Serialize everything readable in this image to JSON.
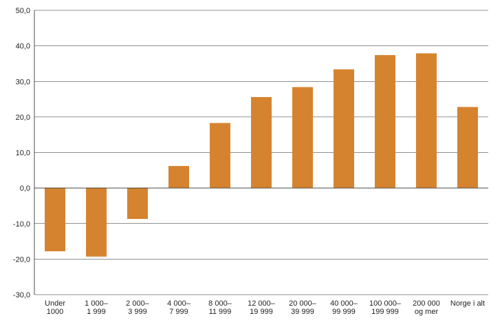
{
  "chart_data": {
    "type": "bar",
    "categories": [
      [
        "Under",
        "1000"
      ],
      [
        "1 000–",
        "1 999"
      ],
      [
        "2 000–",
        "3 999"
      ],
      [
        "4 000–",
        "7 999"
      ],
      [
        "8 000–",
        "11 999"
      ],
      [
        "12 000–",
        "19 999"
      ],
      [
        "20 000–",
        "39 999"
      ],
      [
        "40 000–",
        "99 999"
      ],
      [
        "100 000–",
        "199 999"
      ],
      [
        "200 000",
        "og mer"
      ],
      [
        "Norge i alt"
      ]
    ],
    "values": [
      -17.8,
      -19.3,
      -8.7,
      6.2,
      18.3,
      25.6,
      28.4,
      33.4,
      37.4,
      37.9,
      22.8
    ],
    "y_ticks": [
      "50,0",
      "40,0",
      "30,0",
      "20,0",
      "10,0",
      "0,0",
      "-10,0",
      "-20,0",
      "-30,0"
    ],
    "ylim": [
      -30,
      50
    ],
    "grid": true,
    "colors": {
      "bar": "#d6832f",
      "grid": "#222222",
      "axis": "#222222"
    }
  }
}
